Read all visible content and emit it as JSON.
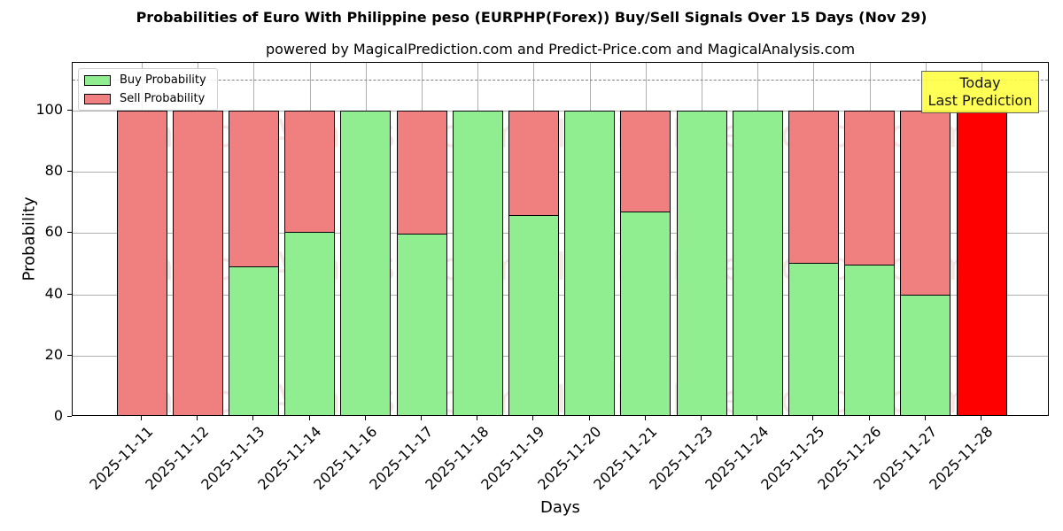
{
  "title": "Probabilities of Euro With Philippine peso (EURPHP(Forex)) Buy/Sell Signals Over 15 Days (Nov 29)",
  "subtitle": "powered by MagicalPrediction.com and Predict-Price.com and MagicalAnalysis.com",
  "annotation": {
    "line1": "Today",
    "line2": "Last Prediction"
  },
  "watermarks": [
    "MagicalAnalysis.com",
    "MagicalPrediction.com"
  ],
  "colors": {
    "buy": "#90ee90",
    "sell": "#f08080",
    "today": "#ff0000",
    "annotation_bg": "#ffff44"
  },
  "chart_data": {
    "type": "bar",
    "stacked": true,
    "title": "Probabilities of Euro With Philippine peso (EURPHP(Forex)) Buy/Sell Signals Over 15 Days (Nov 29)",
    "subtitle": "powered by MagicalPrediction.com and Predict-Price.com and MagicalAnalysis.com",
    "xlabel": "Days",
    "ylabel": "Probability",
    "ylim": [
      0,
      115
    ],
    "yticks": [
      0,
      20,
      40,
      60,
      80,
      100
    ],
    "reference_line": 110,
    "grid": true,
    "legend_position": "upper left",
    "categories": [
      "2025-11-11",
      "2025-11-12",
      "2025-11-13",
      "2025-11-14",
      "2025-11-16",
      "2025-11-17",
      "2025-11-18",
      "2025-11-19",
      "2025-11-20",
      "2025-11-21",
      "2025-11-23",
      "2025-11-24",
      "2025-11-25",
      "2025-11-26",
      "2025-11-27",
      "2025-11-28"
    ],
    "series": [
      {
        "name": "Buy Probability",
        "values": [
          0,
          0,
          49,
          60.5,
          100,
          59.7,
          100,
          66,
          100,
          67,
          100,
          100,
          50.2,
          49.6,
          40,
          0
        ]
      },
      {
        "name": "Sell Probability",
        "values": [
          100,
          100,
          51,
          39.5,
          0,
          40.3,
          0,
          34,
          0,
          33,
          0,
          0,
          49.8,
          50.4,
          60,
          100
        ]
      }
    ],
    "annotations": [
      {
        "text": "Today\nLast Prediction",
        "category": "2025-11-28"
      }
    ]
  }
}
